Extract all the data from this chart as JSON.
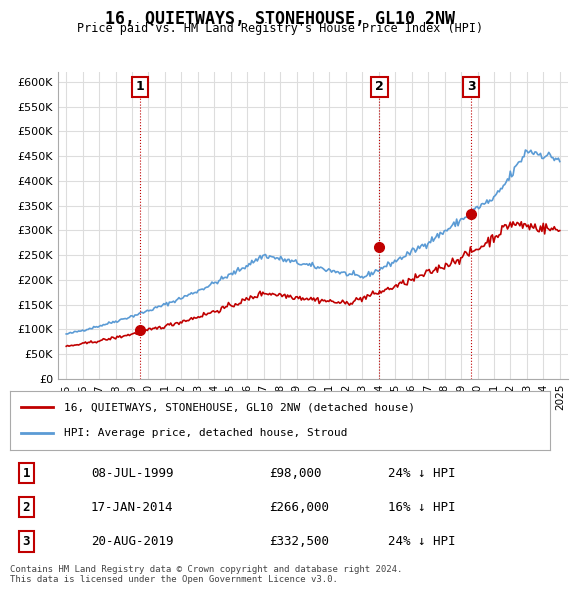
{
  "title": "16, QUIETWAYS, STONEHOUSE, GL10 2NW",
  "subtitle": "Price paid vs. HM Land Registry's House Price Index (HPI)",
  "ylabel_ticks": [
    "£0",
    "£50K",
    "£100K",
    "£150K",
    "£200K",
    "£250K",
    "£300K",
    "£350K",
    "£400K",
    "£450K",
    "£500K",
    "£550K",
    "£600K"
  ],
  "ytick_values": [
    0,
    50000,
    100000,
    150000,
    200000,
    250000,
    300000,
    350000,
    400000,
    450000,
    500000,
    550000,
    600000
  ],
  "ylim": [
    0,
    620000
  ],
  "hpi_color": "#5b9bd5",
  "price_color": "#c00000",
  "sale_marker_color": "#c00000",
  "sale_points": [
    {
      "date_idx": 1999.5,
      "price": 98000,
      "label": "1"
    },
    {
      "date_idx": 2014.04,
      "price": 266000,
      "label": "2"
    },
    {
      "date_idx": 2019.63,
      "price": 332500,
      "label": "3"
    }
  ],
  "legend_entries": [
    {
      "label": "16, QUIETWAYS, STONEHOUSE, GL10 2NW (detached house)",
      "color": "#c00000"
    },
    {
      "label": "HPI: Average price, detached house, Stroud",
      "color": "#5b9bd5"
    }
  ],
  "table_rows": [
    {
      "num": "1",
      "date": "08-JUL-1999",
      "price": "£98,000",
      "hpi": "24% ↓ HPI"
    },
    {
      "num": "2",
      "date": "17-JAN-2014",
      "price": "£266,000",
      "hpi": "16% ↓ HPI"
    },
    {
      "num": "3",
      "date": "20-AUG-2019",
      "price": "£332,500",
      "hpi": "24% ↓ HPI"
    }
  ],
  "footnote": "Contains HM Land Registry data © Crown copyright and database right 2024.\nThis data is licensed under the Open Government Licence v3.0.",
  "background_color": "#ffffff",
  "grid_color": "#dddddd",
  "xtick_years": [
    1995,
    1996,
    1997,
    1998,
    1999,
    2000,
    2001,
    2002,
    2003,
    2004,
    2005,
    2006,
    2007,
    2008,
    2009,
    2010,
    2011,
    2012,
    2013,
    2014,
    2015,
    2016,
    2017,
    2018,
    2019,
    2020,
    2021,
    2022,
    2023,
    2024,
    2025
  ]
}
